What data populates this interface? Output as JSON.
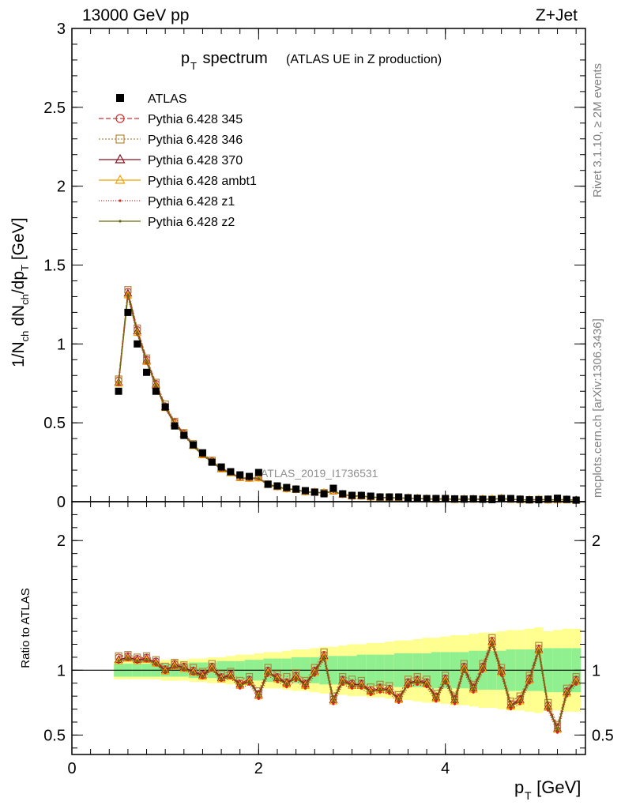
{
  "header": {
    "left": "13000 GeV pp",
    "right": "Z+Jet"
  },
  "side_text": {
    "rivet": "Rivet 3.1.10, ≥ 2M events",
    "mcplots": "mcplots.cern.ch [arXiv:1306.3436]"
  },
  "chart_data": {
    "type": "line",
    "title_main": "p",
    "title_sub": "T",
    "title_rest": " spectrum",
    "title_note": "(ATLAS UE in Z production)",
    "analysis_label": "ATLAS_2019_I1736531",
    "xlabel": "p",
    "xlabel_sub": "T",
    "xlabel_unit": " [GeV]",
    "ylabel": "1/N dN /dp  [GeV]",
    "ratio_ylabel": "Ratio to ATLAS",
    "xlim": [
      0,
      5.5
    ],
    "ylim": [
      0,
      3
    ],
    "ratio_ylim": [
      0.35,
      2.3
    ],
    "x_ticks": [
      "0",
      "2",
      "4"
    ],
    "y_ticks": [
      "0",
      "0.5",
      "1",
      "1.5",
      "2",
      "2.5",
      "3"
    ],
    "ratio_ticks": [
      "0.5",
      "1",
      "2"
    ],
    "x": [
      0.5,
      0.6,
      0.7,
      0.8,
      0.9,
      1.0,
      1.1,
      1.2,
      1.3,
      1.4,
      1.5,
      1.6,
      1.7,
      1.8,
      1.9,
      2.0,
      2.1,
      2.2,
      2.3,
      2.4,
      2.5,
      2.6,
      2.7,
      2.8,
      2.9,
      3.0,
      3.1,
      3.2,
      3.3,
      3.4,
      3.5,
      3.6,
      3.7,
      3.8,
      3.9,
      4.0,
      4.1,
      4.2,
      4.3,
      4.4,
      4.5,
      4.6,
      4.7,
      4.8,
      4.9,
      5.0,
      5.1,
      5.2,
      5.3,
      5.4
    ],
    "data": {
      "name": "ATLAS",
      "values": [
        0.7,
        1.2,
        1.0,
        0.82,
        0.7,
        0.6,
        0.48,
        0.42,
        0.36,
        0.31,
        0.25,
        0.22,
        0.19,
        0.17,
        0.16,
        0.185,
        0.11,
        0.1,
        0.09,
        0.08,
        0.07,
        0.06,
        0.05,
        0.085,
        0.05,
        0.04,
        0.04,
        0.035,
        0.03,
        0.03,
        0.03,
        0.025,
        0.022,
        0.02,
        0.02,
        0.02,
        0.018,
        0.016,
        0.018,
        0.015,
        0.013,
        0.02,
        0.02,
        0.016,
        0.012,
        0.012,
        0.016,
        0.022,
        0.015,
        0.01
      ]
    },
    "series": [
      {
        "name": "Pythia 6.428 345",
        "color": "#cc3333",
        "marker": "circle",
        "dash": "6,3",
        "ratio": [
          1.1,
          1.11,
          1.09,
          1.1,
          1.07,
          1.01,
          1.05,
          1.03,
          1.0,
          0.97,
          1.03,
          0.95,
          0.97,
          0.9,
          0.93,
          0.82,
          1.0,
          0.95,
          0.91,
          0.96,
          0.9,
          1.0,
          1.12,
          0.78,
          0.93,
          0.9,
          0.9,
          0.85,
          0.87,
          0.86,
          0.79,
          0.91,
          0.93,
          0.91,
          0.8,
          0.94,
          0.78,
          1.03,
          0.87,
          1.03,
          1.23,
          1.0,
          0.74,
          0.78,
          0.94,
          1.17,
          0.73,
          0.56,
          0.84,
          0.93
        ]
      },
      {
        "name": "Pythia 6.428 346",
        "color": "#b08a3e",
        "marker": "square",
        "dash": "2,2",
        "ratio": [
          1.11,
          1.12,
          1.1,
          1.11,
          1.08,
          1.03,
          1.06,
          1.04,
          1.02,
          0.99,
          1.05,
          0.97,
          0.99,
          0.92,
          0.95,
          0.84,
          1.02,
          0.97,
          0.95,
          0.98,
          0.92,
          1.02,
          1.14,
          0.8,
          0.95,
          0.93,
          0.92,
          0.87,
          0.89,
          0.88,
          0.81,
          0.93,
          0.95,
          0.93,
          0.82,
          0.96,
          0.8,
          1.05,
          0.89,
          1.05,
          1.25,
          1.02,
          0.76,
          0.8,
          0.96,
          1.19,
          0.75,
          0.58,
          0.86,
          0.95
        ]
      },
      {
        "name": "Pythia 6.428 370",
        "color": "#8b0f1f",
        "marker": "triangle",
        "dash": "",
        "ratio": [
          1.08,
          1.1,
          1.08,
          1.09,
          1.06,
          1.0,
          1.04,
          1.02,
          0.99,
          0.96,
          1.02,
          0.94,
          0.96,
          0.89,
          0.92,
          0.81,
          0.99,
          0.94,
          0.9,
          0.95,
          0.89,
          0.99,
          1.11,
          0.77,
          0.92,
          0.89,
          0.89,
          0.84,
          0.86,
          0.85,
          0.78,
          0.9,
          0.92,
          0.9,
          0.79,
          0.93,
          0.77,
          1.02,
          0.86,
          1.02,
          1.22,
          0.99,
          0.73,
          0.77,
          0.93,
          1.16,
          0.72,
          0.55,
          0.83,
          0.92
        ]
      },
      {
        "name": "Pythia 6.428 ambt1",
        "color": "#f5a000",
        "marker": "triangle",
        "dash": "",
        "ratio": [
          1.07,
          1.09,
          1.07,
          1.08,
          1.05,
          0.99,
          1.03,
          1.01,
          0.98,
          0.95,
          1.01,
          0.93,
          0.95,
          0.88,
          0.91,
          0.8,
          0.98,
          0.93,
          0.89,
          0.94,
          0.88,
          0.98,
          1.1,
          0.76,
          0.91,
          0.88,
          0.88,
          0.83,
          0.85,
          0.84,
          0.77,
          0.89,
          0.91,
          0.89,
          0.78,
          0.92,
          0.76,
          1.01,
          0.85,
          1.01,
          1.21,
          0.98,
          0.72,
          0.76,
          0.92,
          1.15,
          0.71,
          0.54,
          0.82,
          0.91
        ]
      },
      {
        "name": "Pythia 6.428 z1",
        "color": "#e02020",
        "marker": "dot",
        "dash": "1,2",
        "ratio": [
          1.06,
          1.08,
          1.06,
          1.07,
          1.04,
          0.98,
          1.02,
          1.0,
          0.97,
          0.94,
          1.0,
          0.92,
          0.94,
          0.86,
          0.89,
          0.78,
          0.96,
          0.91,
          0.87,
          0.92,
          0.86,
          0.96,
          1.08,
          0.74,
          0.89,
          0.86,
          0.86,
          0.81,
          0.83,
          0.82,
          0.75,
          0.87,
          0.89,
          0.87,
          0.76,
          0.9,
          0.74,
          0.99,
          0.83,
          0.99,
          1.19,
          0.96,
          0.7,
          0.74,
          0.9,
          1.13,
          0.69,
          0.52,
          0.8,
          0.89
        ]
      },
      {
        "name": "Pythia 6.428 z2",
        "color": "#6b6b12",
        "marker": "dot",
        "dash": "",
        "ratio": [
          1.07,
          1.09,
          1.07,
          1.08,
          1.05,
          0.99,
          1.03,
          1.01,
          0.98,
          0.95,
          1.01,
          0.93,
          0.95,
          0.88,
          0.91,
          0.8,
          0.98,
          0.93,
          0.89,
          0.94,
          0.88,
          0.98,
          1.1,
          0.76,
          0.91,
          0.88,
          0.88,
          0.83,
          0.85,
          0.84,
          0.77,
          0.89,
          0.91,
          0.89,
          0.78,
          0.92,
          0.76,
          1.01,
          0.85,
          1.01,
          1.21,
          0.98,
          0.72,
          0.76,
          0.92,
          1.15,
          0.71,
          0.54,
          0.82,
          0.91
        ]
      }
    ],
    "band_inner": [
      0.05,
      0.05,
      0.05,
      0.05,
      0.05,
      0.05,
      0.05,
      0.05,
      0.06,
      0.06,
      0.06,
      0.07,
      0.07,
      0.07,
      0.08,
      0.08,
      0.09,
      0.09,
      0.09,
      0.1,
      0.1,
      0.1,
      0.11,
      0.11,
      0.11,
      0.11,
      0.12,
      0.12,
      0.12,
      0.12,
      0.13,
      0.13,
      0.13,
      0.13,
      0.14,
      0.14,
      0.14,
      0.14,
      0.15,
      0.15,
      0.15,
      0.15,
      0.16,
      0.16,
      0.16,
      0.16,
      0.17,
      0.17,
      0.17,
      0.17
    ],
    "band_outer": [
      0.07,
      0.07,
      0.07,
      0.07,
      0.07,
      0.08,
      0.08,
      0.08,
      0.09,
      0.09,
      0.1,
      0.1,
      0.11,
      0.12,
      0.12,
      0.13,
      0.14,
      0.14,
      0.15,
      0.16,
      0.16,
      0.17,
      0.18,
      0.18,
      0.19,
      0.2,
      0.2,
      0.21,
      0.21,
      0.22,
      0.23,
      0.23,
      0.24,
      0.25,
      0.25,
      0.26,
      0.27,
      0.27,
      0.28,
      0.29,
      0.29,
      0.3,
      0.31,
      0.31,
      0.32,
      0.33,
      0.3,
      0.31,
      0.32,
      0.32
    ],
    "colors": {
      "band_inner": "#90f090",
      "band_outer": "#ffff90",
      "data": "#000000"
    }
  }
}
